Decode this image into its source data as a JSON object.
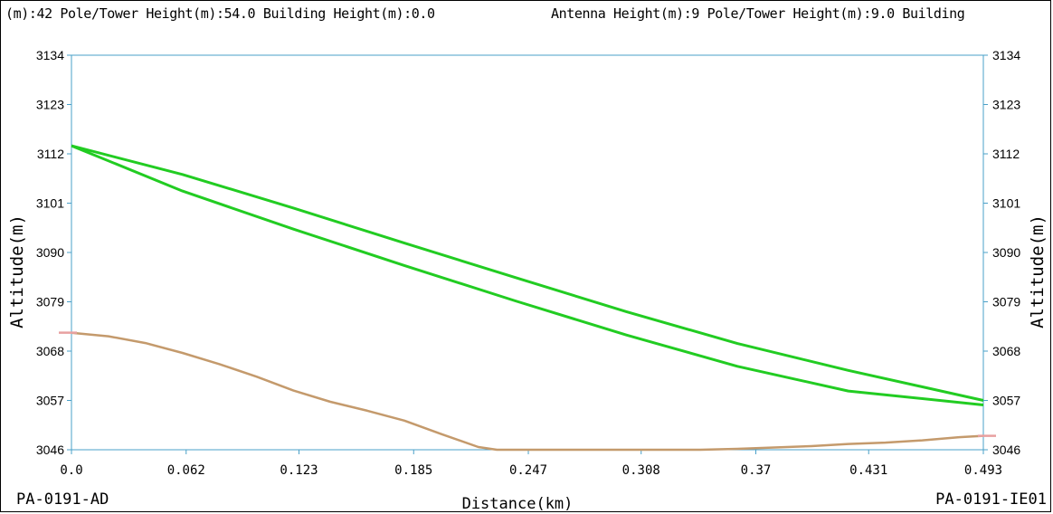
{
  "header": {
    "left_text": "(m):42 Pole/Tower Height(m):54.0 Building Height(m):0.0",
    "right_text": "Antenna Height(m):9 Pole/Tower Height(m):9.0 Building"
  },
  "colors": {
    "fresnel_zone": "#22cc22",
    "terrain": "#c49a6c",
    "terrain_end": "#e8a0a0",
    "axis": "#4aa0c8"
  },
  "chart_data": {
    "type": "line",
    "title": "",
    "xlabel": "Distance(km)",
    "ylabel_left": "Altitude(m)",
    "ylabel_right": "Altitude(m)",
    "xlim": [
      0,
      0.493
    ],
    "ylim": [
      3046,
      3134
    ],
    "x_tick_labels": [
      "0.0",
      "0.062",
      "0.123",
      "0.185",
      "0.247",
      "0.308",
      "0.37",
      "0.431",
      "0.493"
    ],
    "x_tick_values": [
      0,
      0.062,
      0.123,
      0.185,
      0.247,
      0.308,
      0.37,
      0.431,
      0.493
    ],
    "y_tick_labels": [
      "3134",
      "3123",
      "3112",
      "3101",
      "3090",
      "3079",
      "3068",
      "3057",
      "3046"
    ],
    "y_tick_values": [
      3134,
      3123,
      3112,
      3101,
      3090,
      3079,
      3068,
      3057,
      3046
    ],
    "start_site": "PA-0191-AD",
    "end_site": "PA-0191-IE01",
    "grid": false,
    "series": [
      {
        "kind": "fresnel_upper",
        "x": [
          0,
          0.06,
          0.12,
          0.18,
          0.24,
          0.3,
          0.36,
          0.42,
          0.493
        ],
        "y": [
          3113.8,
          3107.4,
          3099.9,
          3092.1,
          3084.4,
          3076.8,
          3069.7,
          3063.7,
          3057
        ]
      },
      {
        "kind": "fresnel_lower",
        "x": [
          0,
          0.06,
          0.12,
          0.18,
          0.24,
          0.3,
          0.36,
          0.42,
          0.493
        ],
        "y": [
          3113.8,
          3103.7,
          3095.2,
          3087.1,
          3079.2,
          3071.6,
          3064.6,
          3059.1,
          3056
        ]
      },
      {
        "kind": "terrain",
        "x": [
          0,
          0.02,
          0.04,
          0.06,
          0.08,
          0.1,
          0.12,
          0.14,
          0.16,
          0.18,
          0.2,
          0.22,
          0.23,
          0.26,
          0.3,
          0.34,
          0.36,
          0.38,
          0.4,
          0.42,
          0.44,
          0.46,
          0.48,
          0.493
        ],
        "y": [
          3072.1,
          3071.3,
          3069.8,
          3067.6,
          3065.1,
          3062.3,
          3059.2,
          3056.7,
          3054.7,
          3052.5,
          3049.5,
          3046.6,
          3046,
          3046,
          3046,
          3046,
          3046.2,
          3046.5,
          3046.8,
          3047.3,
          3047.6,
          3048.1,
          3048.8,
          3049.1
        ]
      }
    ]
  }
}
